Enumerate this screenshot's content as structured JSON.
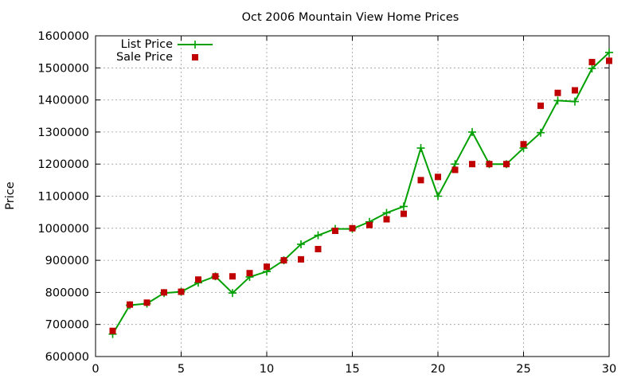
{
  "chart_data": {
    "type": "line",
    "title": "Oct 2006 Mountain View Home Prices",
    "xlabel": "",
    "ylabel": "Price",
    "xlim": [
      0,
      30
    ],
    "ylim": [
      600000,
      1600000
    ],
    "x_ticks": [
      0,
      5,
      10,
      15,
      20,
      25,
      30
    ],
    "y_ticks": [
      600000,
      700000,
      800000,
      900000,
      1000000,
      1100000,
      1200000,
      1300000,
      1400000,
      1500000,
      1600000
    ],
    "grid": true,
    "legend_position": "top-left",
    "series": [
      {
        "name": "List Price",
        "style": "linespoints",
        "marker": "plus",
        "color": "#00a000",
        "x": [
          1,
          2,
          3,
          4,
          5,
          6,
          7,
          8,
          9,
          10,
          11,
          12,
          13,
          14,
          15,
          16,
          17,
          18,
          19,
          20,
          21,
          22,
          23,
          24,
          25,
          26,
          27,
          28,
          29,
          30
        ],
        "y": [
          670000,
          760000,
          765000,
          798000,
          802000,
          830000,
          850000,
          798000,
          848000,
          865000,
          900000,
          950000,
          978000,
          998000,
          998000,
          1020000,
          1048000,
          1068000,
          1250000,
          1100000,
          1200000,
          1300000,
          1200000,
          1200000,
          1250000,
          1298000,
          1398000,
          1395000,
          1498000,
          1548000
        ]
      },
      {
        "name": "Sale Price",
        "style": "points",
        "marker": "square",
        "color": "#c00000",
        "x": [
          1,
          2,
          3,
          4,
          5,
          6,
          7,
          8,
          9,
          10,
          11,
          12,
          13,
          14,
          15,
          16,
          17,
          18,
          19,
          20,
          21,
          22,
          23,
          24,
          25,
          26,
          27,
          28,
          29,
          30
        ],
        "y": [
          680000,
          762000,
          768000,
          800000,
          802000,
          840000,
          850000,
          850000,
          860000,
          880000,
          900000,
          903000,
          935000,
          992000,
          1000000,
          1010000,
          1028000,
          1045000,
          1150000,
          1160000,
          1182000,
          1200000,
          1200000,
          1200000,
          1262000,
          1382000,
          1422000,
          1430000,
          1518000,
          1522000
        ]
      }
    ]
  }
}
